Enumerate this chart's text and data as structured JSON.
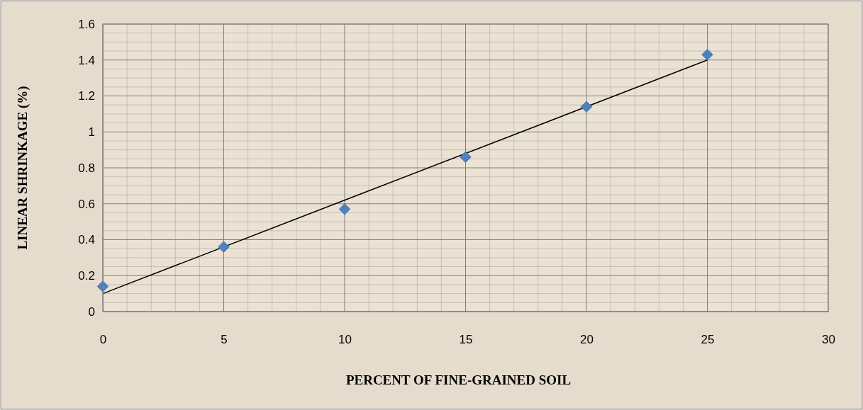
{
  "chart_data": {
    "type": "scatter",
    "xlabel": "PERCENT OF FINE-GRAINED SOIL",
    "ylabel": "LINEAR SHRINKAGE (%)",
    "series": [
      {
        "marker": "diamond",
        "color": "#4f81bd",
        "x": [
          0,
          5,
          10,
          15,
          20,
          25
        ],
        "values": [
          0.14,
          0.36,
          0.57,
          0.86,
          1.14,
          1.43
        ]
      },
      {
        "type": "line",
        "marker": "none",
        "color": "#000000",
        "x": [
          0,
          25
        ],
        "values": [
          0.1,
          1.4
        ]
      }
    ],
    "xlim": [
      0,
      30
    ],
    "xticks": [
      0,
      5,
      10,
      15,
      20,
      25,
      30
    ],
    "ylim": [
      0,
      1.6
    ],
    "yticks": [
      0,
      {
        "value": 0.2,
        "label": "0.2"
      },
      {
        "value": 0.4,
        "label": "0.4"
      },
      {
        "value": 0.6,
        "label": "0.6"
      },
      {
        "value": 0.8,
        "label": "0.8"
      },
      1,
      {
        "value": 1.2,
        "label": "1.2"
      },
      {
        "value": 1.4,
        "label": "1.4"
      },
      {
        "value": 1.6,
        "label": "1.6"
      }
    ],
    "grid": true,
    "line_style": "solid"
  }
}
